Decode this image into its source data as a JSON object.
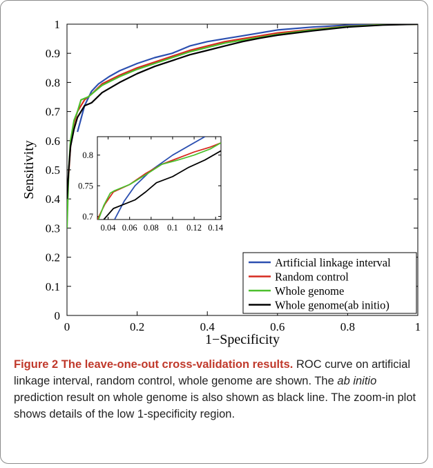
{
  "chart_data": [
    {
      "type": "line",
      "xlabel": "1−Specificity",
      "ylabel": "Sensitivity",
      "xlim": [
        0,
        1
      ],
      "ylim": [
        0,
        1
      ],
      "x_ticks": [
        "0",
        "0.2",
        "0.4",
        "0.6",
        "0.8",
        "1"
      ],
      "y_ticks": [
        "0",
        "0.1",
        "0.2",
        "0.3",
        "0.4",
        "0.5",
        "0.6",
        "0.7",
        "0.8",
        "0.9",
        "1"
      ],
      "grid": false,
      "legend_position": "bottom-right",
      "series": [
        {
          "name": "Artificial linkage interval",
          "color": "#2b4fb0",
          "points": [
            [
              0.03,
              0.63
            ],
            [
              0.05,
              0.72
            ],
            [
              0.07,
              0.77
            ],
            [
              0.09,
              0.795
            ],
            [
              0.12,
              0.82
            ],
            [
              0.15,
              0.84
            ],
            [
              0.2,
              0.865
            ],
            [
              0.25,
              0.885
            ],
            [
              0.3,
              0.9
            ],
            [
              0.35,
              0.925
            ],
            [
              0.4,
              0.94
            ],
            [
              0.45,
              0.95
            ],
            [
              0.5,
              0.96
            ],
            [
              0.55,
              0.97
            ],
            [
              0.6,
              0.98
            ],
            [
              0.7,
              0.99
            ],
            [
              0.8,
              0.997
            ],
            [
              0.9,
              1.0
            ],
            [
              1.0,
              1.0
            ]
          ]
        },
        {
          "name": "Random control",
          "color": "#d62a1f",
          "points": [
            [
              0.0,
              0.4
            ],
            [
              0.01,
              0.58
            ],
            [
              0.02,
              0.66
            ],
            [
              0.03,
              0.7
            ],
            [
              0.05,
              0.74
            ],
            [
              0.07,
              0.76
            ],
            [
              0.1,
              0.795
            ],
            [
              0.15,
              0.825
            ],
            [
              0.2,
              0.85
            ],
            [
              0.25,
              0.87
            ],
            [
              0.3,
              0.89
            ],
            [
              0.35,
              0.91
            ],
            [
              0.4,
              0.925
            ],
            [
              0.45,
              0.94
            ],
            [
              0.5,
              0.95
            ],
            [
              0.55,
              0.96
            ],
            [
              0.6,
              0.97
            ],
            [
              0.7,
              0.982
            ],
            [
              0.8,
              0.993
            ],
            [
              0.9,
              0.998
            ],
            [
              1.0,
              1.0
            ]
          ]
        },
        {
          "name": "Whole genome",
          "color": "#4cbf2c",
          "points": [
            [
              0.0,
              0.3
            ],
            [
              0.005,
              0.5
            ],
            [
              0.01,
              0.6
            ],
            [
              0.02,
              0.67
            ],
            [
              0.03,
              0.7
            ],
            [
              0.04,
              0.74
            ],
            [
              0.06,
              0.75
            ],
            [
              0.08,
              0.77
            ],
            [
              0.1,
              0.79
            ],
            [
              0.15,
              0.82
            ],
            [
              0.2,
              0.845
            ],
            [
              0.25,
              0.865
            ],
            [
              0.3,
              0.885
            ],
            [
              0.35,
              0.905
            ],
            [
              0.4,
              0.92
            ],
            [
              0.45,
              0.935
            ],
            [
              0.5,
              0.945
            ],
            [
              0.55,
              0.955
            ],
            [
              0.6,
              0.965
            ],
            [
              0.7,
              0.98
            ],
            [
              0.8,
              0.992
            ],
            [
              0.9,
              0.998
            ],
            [
              1.0,
              1.0
            ]
          ]
        },
        {
          "name": "Whole genome(ab initio)",
          "color": "#000000",
          "points": [
            [
              0.0,
              0.4
            ],
            [
              0.005,
              0.5
            ],
            [
              0.01,
              0.58
            ],
            [
              0.02,
              0.64
            ],
            [
              0.03,
              0.68
            ],
            [
              0.05,
              0.72
            ],
            [
              0.07,
              0.73
            ],
            [
              0.1,
              0.765
            ],
            [
              0.15,
              0.8
            ],
            [
              0.2,
              0.83
            ],
            [
              0.25,
              0.855
            ],
            [
              0.3,
              0.875
            ],
            [
              0.35,
              0.895
            ],
            [
              0.4,
              0.91
            ],
            [
              0.45,
              0.925
            ],
            [
              0.5,
              0.94
            ],
            [
              0.55,
              0.952
            ],
            [
              0.6,
              0.962
            ],
            [
              0.7,
              0.977
            ],
            [
              0.8,
              0.99
            ],
            [
              0.9,
              0.997
            ],
            [
              1.0,
              1.0
            ]
          ]
        }
      ]
    },
    {
      "type": "line",
      "xlim": [
        0.03,
        0.145
      ],
      "ylim": [
        0.695,
        0.83
      ],
      "x_ticks": [
        "0.04",
        "0.06",
        "0.08",
        "0.1",
        "0.12",
        "0.14"
      ],
      "y_ticks": [
        "0.7",
        "0.75",
        "0.8"
      ],
      "series": [
        {
          "color": "#2b4fb0",
          "points": [
            [
              0.046,
              0.695
            ],
            [
              0.055,
              0.725
            ],
            [
              0.065,
              0.75
            ],
            [
              0.08,
              0.775
            ],
            [
              0.1,
              0.8
            ],
            [
              0.115,
              0.815
            ],
            [
              0.13,
              0.83
            ]
          ]
        },
        {
          "color": "#d62a1f",
          "points": [
            [
              0.03,
              0.695
            ],
            [
              0.037,
              0.72
            ],
            [
              0.045,
              0.74
            ],
            [
              0.06,
              0.752
            ],
            [
              0.075,
              0.77
            ],
            [
              0.09,
              0.785
            ],
            [
              0.105,
              0.795
            ],
            [
              0.12,
              0.805
            ],
            [
              0.135,
              0.813
            ],
            [
              0.145,
              0.82
            ]
          ]
        },
        {
          "color": "#4cbf2c",
          "points": [
            [
              0.031,
              0.695
            ],
            [
              0.036,
              0.718
            ],
            [
              0.042,
              0.738
            ],
            [
              0.046,
              0.742
            ],
            [
              0.06,
              0.752
            ],
            [
              0.075,
              0.768
            ],
            [
              0.09,
              0.785
            ],
            [
              0.105,
              0.792
            ],
            [
              0.12,
              0.8
            ],
            [
              0.135,
              0.81
            ],
            [
              0.145,
              0.82
            ]
          ]
        },
        {
          "color": "#000000",
          "points": [
            [
              0.036,
              0.695
            ],
            [
              0.045,
              0.713
            ],
            [
              0.055,
              0.72
            ],
            [
              0.065,
              0.727
            ],
            [
              0.075,
              0.74
            ],
            [
              0.085,
              0.755
            ],
            [
              0.1,
              0.765
            ],
            [
              0.115,
              0.78
            ],
            [
              0.13,
              0.792
            ],
            [
              0.145,
              0.807
            ]
          ]
        }
      ]
    }
  ],
  "caption": {
    "label": "Figure 2",
    "title": "The leave-one-out cross-validation results.",
    "text_before": "ROC curve on artificial linkage interval, random control, whole genome are shown. The",
    "italic": "ab initio",
    "text_after": "prediction result on whole genome is also shown as black line. The zoom-in plot shows details of the low 1-specificity region."
  }
}
